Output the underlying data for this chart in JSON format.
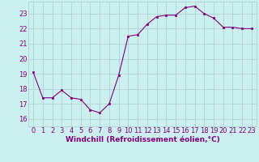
{
  "x": [
    0,
    1,
    2,
    3,
    4,
    5,
    6,
    7,
    8,
    9,
    10,
    11,
    12,
    13,
    14,
    15,
    16,
    17,
    18,
    19,
    20,
    21,
    22,
    23
  ],
  "y": [
    19.1,
    17.4,
    17.4,
    17.9,
    17.4,
    17.3,
    16.6,
    16.4,
    17.0,
    18.9,
    21.5,
    21.6,
    22.3,
    22.8,
    22.9,
    22.9,
    23.4,
    23.5,
    23.0,
    22.7,
    22.1,
    22.1,
    22.0,
    22.0
  ],
  "line_color": "#800080",
  "marker": "s",
  "marker_size": 2,
  "bg_color": "#ccf0f0",
  "grid_color": "#aacccc",
  "xlabel": "Windchill (Refroidissement éolien,°C)",
  "xlabel_fontsize": 6.5,
  "tick_fontsize": 6,
  "ylim": [
    15.5,
    23.8
  ],
  "yticks": [
    16,
    17,
    18,
    19,
    20,
    21,
    22,
    23
  ]
}
